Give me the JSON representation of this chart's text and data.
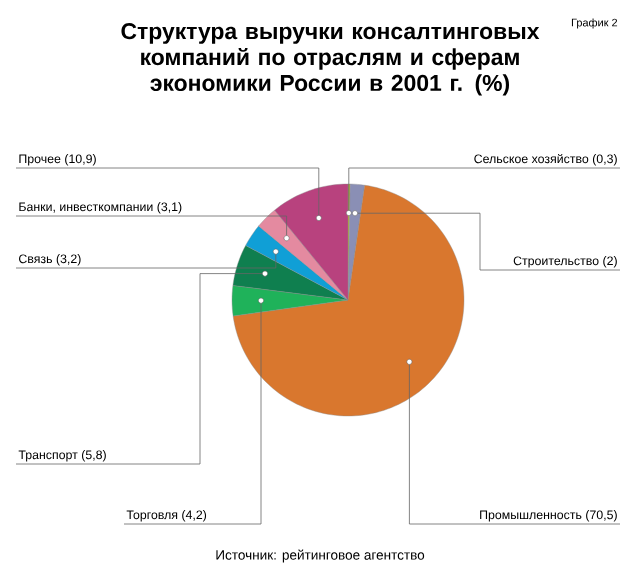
{
  "chart_data": {
    "type": "pie",
    "title": "Структура выручки консалтинговых компаний по отраслям и сферам экономики России в 2001 г. (%)",
    "categories": [
      "Сельское хозяйство",
      "Строительство",
      "Промышленность",
      "Торговля",
      "Транспорт",
      "Связь",
      "Банки, инвесткомпании",
      "Прочее"
    ],
    "values": [
      0.3,
      2,
      70.5,
      4.2,
      5.8,
      3.2,
      3.1,
      10.9
    ],
    "value_labels": [
      "(0,3)",
      "(2)",
      "(70,5)",
      "(4,2)",
      "(5,8)",
      "(3,2)",
      "(3,1)",
      "(10,9)"
    ],
    "colors": [
      "#b5b82a",
      "#8a8fb5",
      "#d9772e",
      "#1fb25a",
      "#0f7f4f",
      "#109fd6",
      "#e48aa0",
      "#b8427e"
    ],
    "annotations": [
      "График 2",
      "Источник: рейтинговое агентство"
    ]
  }
}
